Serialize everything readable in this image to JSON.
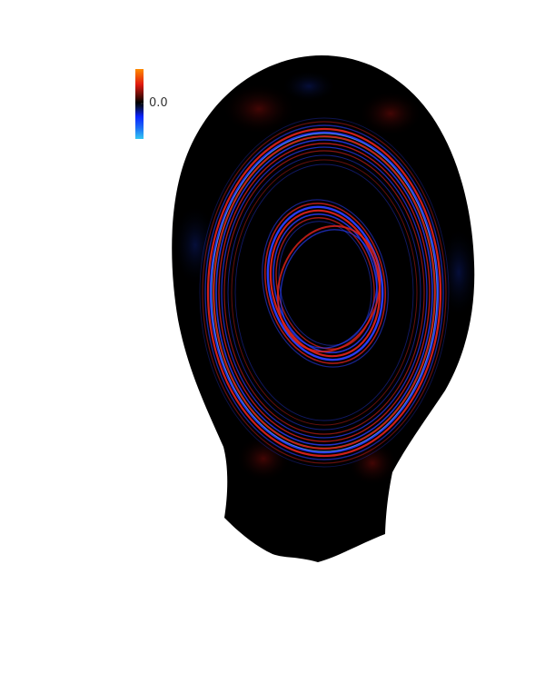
{
  "figure": {
    "colormap": {
      "name": "diverging-dark-center",
      "stops": [
        "#34c7f2",
        "#0b23ff",
        "#07154a",
        "#000000",
        "#4a0a05",
        "#e01a10",
        "#ff8a00"
      ],
      "center_tick_label": "0.0"
    },
    "colors": {
      "background": "#ffffff",
      "plasma_region": "#000000",
      "positive": "#e3231c",
      "negative": "#2a3fff",
      "strong_positive": "#ff9a3a",
      "strong_negative": "#7fd4ff"
    }
  }
}
